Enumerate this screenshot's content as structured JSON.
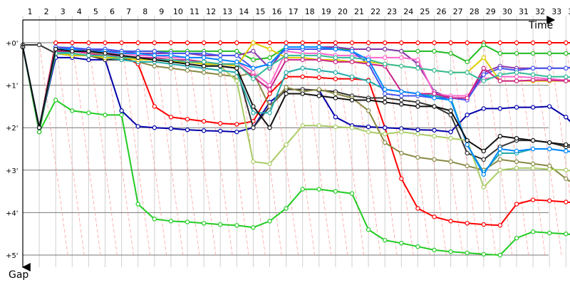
{
  "chart_data": {
    "type": "line",
    "title": "",
    "xlabel": "Time",
    "ylabel": "Gap",
    "x": [
      1,
      2,
      3,
      4,
      5,
      6,
      7,
      8,
      9,
      10,
      11,
      12,
      13,
      14,
      15,
      16,
      17,
      18,
      19,
      20,
      21,
      22,
      23,
      24,
      25,
      26,
      27,
      28,
      29,
      30,
      31,
      32,
      33,
      34,
      35
    ],
    "x_tick_labels": [
      "1",
      "2",
      "3",
      "4",
      "5",
      "6",
      "7",
      "8",
      "9",
      "10",
      "11",
      "12",
      "13",
      "14",
      "15",
      "16",
      "17",
      "18",
      "19",
      "20",
      "21",
      "22",
      "23",
      "24",
      "25",
      "26",
      "27",
      "28",
      "29",
      "30",
      "31",
      "32",
      "33",
      "34",
      "35"
    ],
    "y_tick_labels": [
      "+0'",
      "+1'",
      "+2'",
      "+3'",
      "+4'",
      "+5'"
    ],
    "y_ticks": [
      0,
      1,
      2,
      3,
      4,
      5
    ],
    "ylim": [
      0,
      5
    ],
    "y_inverted": true,
    "xlim": [
      1,
      36
    ],
    "grid": true,
    "legend": "none",
    "series": [
      {
        "color": "#ff0000",
        "values": [
          0.1,
          2.0,
          0.25,
          0.3,
          0.3,
          0.3,
          0.3,
          0.5,
          1.5,
          1.75,
          1.8,
          1.85,
          1.9,
          1.92,
          1.85,
          1.2,
          0.8,
          0.8,
          0.82,
          0.85,
          0.85,
          0.88,
          2.0,
          3.2,
          3.9,
          4.1,
          4.2,
          4.25,
          4.28,
          4.3,
          3.8,
          3.7,
          3.72,
          3.75,
          3.78
        ]
      },
      {
        "color": "#ff0000",
        "values": [
          0.1,
          2.0,
          0.0,
          0.0,
          0.0,
          0.0,
          0.0,
          0.0,
          0.0,
          0.0,
          0.0,
          0.0,
          0.0,
          0.0,
          0.0,
          0.0,
          0.0,
          0.0,
          0.0,
          0.0,
          0.0,
          0.0,
          0.0,
          0.0,
          0.0,
          0.0,
          0.0,
          0.0,
          0.0,
          0.0,
          0.0,
          0.0,
          0.0,
          0.0,
          0.0
        ]
      },
      {
        "color": "#22cc22",
        "values": [
          0.1,
          2.1,
          1.35,
          1.6,
          1.65,
          1.7,
          1.7,
          3.8,
          4.15,
          4.2,
          4.22,
          4.25,
          4.28,
          4.3,
          4.35,
          4.2,
          3.9,
          3.45,
          3.45,
          3.5,
          3.55,
          4.4,
          4.65,
          4.72,
          4.8,
          4.88,
          4.92,
          4.95,
          4.98,
          5.0,
          4.6,
          4.45,
          4.48,
          4.5,
          4.55
        ]
      },
      {
        "color": "#22bb22",
        "values": [
          0.1,
          2.1,
          0.2,
          0.2,
          0.2,
          0.2,
          0.2,
          0.2,
          0.2,
          0.2,
          0.2,
          0.2,
          0.2,
          0.2,
          0.4,
          0.35,
          0.1,
          0.1,
          0.1,
          0.15,
          0.15,
          0.15,
          0.15,
          0.2,
          0.2,
          0.2,
          0.25,
          0.45,
          0.05,
          0.25,
          0.25,
          0.25,
          0.25,
          0.25,
          0.28
        ]
      },
      {
        "color": "#0000aa",
        "values": [
          0.1,
          2.0,
          0.35,
          0.35,
          0.4,
          0.4,
          1.6,
          1.97,
          2.0,
          2.02,
          2.05,
          2.07,
          2.08,
          2.1,
          2.0,
          1.4,
          1.1,
          1.1,
          1.12,
          1.75,
          1.95,
          1.98,
          2.0,
          2.02,
          2.05,
          2.06,
          2.1,
          1.7,
          1.55,
          1.55,
          1.52,
          1.52,
          1.5,
          1.75,
          2.15
        ]
      },
      {
        "color": "#333333",
        "values": [
          0.05,
          0.05,
          0.25,
          0.3,
          0.3,
          0.4,
          0.4,
          0.35,
          0.4,
          0.45,
          0.45,
          0.5,
          0.55,
          0.6,
          2.0,
          1.5,
          1.1,
          1.1,
          1.12,
          1.15,
          1.25,
          1.3,
          1.3,
          1.35,
          1.4,
          1.5,
          1.7,
          2.6,
          2.75,
          2.45,
          2.3,
          2.3,
          2.35,
          2.45,
          2.48
        ]
      },
      {
        "color": "#888844",
        "values": [
          0.1,
          2.0,
          0.2,
          0.25,
          0.3,
          0.35,
          0.4,
          0.45,
          0.55,
          0.6,
          0.65,
          0.7,
          0.75,
          0.8,
          0.7,
          1.5,
          1.05,
          1.15,
          1.1,
          1.2,
          1.3,
          1.6,
          2.35,
          2.6,
          2.7,
          2.75,
          2.8,
          2.9,
          3.0,
          2.75,
          2.8,
          2.85,
          2.9,
          3.2,
          3.45
        ]
      },
      {
        "color": "#aacc66",
        "values": [
          0.1,
          2.0,
          0.15,
          0.2,
          0.25,
          0.25,
          0.3,
          0.35,
          0.4,
          0.45,
          0.45,
          0.5,
          0.55,
          0.9,
          2.8,
          2.85,
          2.4,
          1.95,
          1.95,
          1.98,
          2.0,
          2.1,
          2.15,
          2.1,
          2.15,
          2.2,
          2.25,
          2.3,
          3.4,
          3.0,
          2.95,
          2.95,
          2.98,
          3.0,
          3.05
        ]
      },
      {
        "color": "#22aaaa",
        "values": [
          0.1,
          2.0,
          0.2,
          0.25,
          0.3,
          0.35,
          0.4,
          0.45,
          0.45,
          0.5,
          0.55,
          0.6,
          0.65,
          0.7,
          1.65,
          1.65,
          0.7,
          0.6,
          0.65,
          0.7,
          0.8,
          0.9,
          1.1,
          1.15,
          1.2,
          1.25,
          1.3,
          2.4,
          3.05,
          2.6,
          2.6,
          2.5,
          2.5,
          2.55,
          2.6
        ]
      },
      {
        "color": "#8833aa",
        "values": [
          0.1,
          2.0,
          0.1,
          0.15,
          0.15,
          0.2,
          0.2,
          0.25,
          0.25,
          0.25,
          0.25,
          0.3,
          0.3,
          0.3,
          0.2,
          0.6,
          0.1,
          0.1,
          0.1,
          0.1,
          0.15,
          0.15,
          0.15,
          0.2,
          0.5,
          1.15,
          1.3,
          1.3,
          0.7,
          0.55,
          0.6,
          0.6,
          0.6,
          0.6,
          0.55
        ]
      },
      {
        "color": "#ff66cc",
        "values": [
          0.1,
          2.0,
          0.15,
          0.2,
          0.2,
          0.25,
          0.25,
          0.3,
          0.3,
          0.35,
          0.35,
          0.35,
          0.4,
          0.45,
          0.7,
          1.0,
          0.2,
          0.25,
          0.25,
          0.3,
          0.3,
          0.35,
          0.35,
          0.35,
          0.4,
          1.2,
          1.25,
          1.25,
          0.85,
          0.8,
          0.8,
          0.82,
          0.85,
          0.88,
          0.9
        ]
      },
      {
        "color": "#4455ee",
        "values": [
          0.1,
          2.0,
          0.1,
          0.12,
          0.15,
          0.15,
          0.2,
          0.2,
          0.2,
          0.25,
          0.25,
          0.25,
          0.3,
          0.3,
          0.6,
          0.5,
          0.15,
          0.15,
          0.15,
          0.15,
          0.2,
          0.5,
          1.2,
          1.25,
          1.25,
          1.3,
          1.3,
          1.35,
          0.75,
          0.6,
          0.65,
          0.6,
          0.6,
          0.6,
          0.55
        ]
      },
      {
        "color": "#ddcc00",
        "values": [
          0.1,
          2.0,
          0.25,
          0.3,
          0.3,
          0.35,
          0.35,
          0.4,
          0.4,
          0.45,
          0.45,
          0.5,
          0.5,
          0.55,
          0.0,
          0.15,
          0.35,
          0.35,
          0.4,
          0.4,
          0.45,
          0.45,
          0.5,
          0.55,
          0.6,
          0.65,
          0.7,
          0.7,
          0.35,
          0.9,
          0.9,
          0.9,
          0.9,
          0.9,
          0.95
        ]
      },
      {
        "color": "#cc2288",
        "values": [
          0.1,
          2.0,
          0.2,
          0.2,
          0.25,
          0.3,
          0.3,
          0.35,
          0.35,
          0.4,
          0.4,
          0.45,
          0.5,
          0.5,
          0.8,
          1.1,
          0.4,
          0.4,
          0.4,
          0.45,
          0.45,
          0.5,
          0.55,
          1.15,
          1.2,
          1.2,
          1.3,
          1.3,
          0.6,
          0.9,
          0.9,
          0.88,
          0.88,
          0.9,
          0.9
        ]
      },
      {
        "color": "#33bb99",
        "values": [
          0.1,
          2.0,
          0.25,
          0.25,
          0.3,
          0.3,
          0.35,
          0.35,
          0.4,
          0.4,
          0.45,
          0.45,
          0.5,
          0.5,
          0.85,
          0.55,
          0.3,
          0.3,
          0.3,
          0.35,
          0.35,
          0.4,
          0.5,
          0.55,
          0.6,
          0.65,
          0.7,
          0.7,
          0.9,
          0.75,
          0.7,
          0.75,
          0.8,
          0.8,
          0.85
        ]
      },
      {
        "color": "#0088ff",
        "values": [
          0.1,
          2.0,
          0.15,
          0.15,
          0.2,
          0.2,
          0.25,
          0.25,
          0.3,
          0.3,
          0.35,
          0.35,
          0.4,
          0.45,
          0.6,
          0.5,
          0.1,
          0.1,
          0.1,
          0.15,
          0.2,
          0.4,
          1.1,
          1.15,
          1.2,
          1.3,
          1.35,
          2.4,
          3.1,
          2.5,
          2.55,
          2.5,
          2.5,
          2.55,
          2.6
        ]
      },
      {
        "color": "#111111",
        "values": [
          0.1,
          2.0,
          0.15,
          0.2,
          0.2,
          0.25,
          0.3,
          0.35,
          0.4,
          0.45,
          0.5,
          0.55,
          0.55,
          0.6,
          1.5,
          2.0,
          1.2,
          1.2,
          1.25,
          1.3,
          1.35,
          1.35,
          1.4,
          1.45,
          1.5,
          1.5,
          1.6,
          2.3,
          2.55,
          2.2,
          2.25,
          2.3,
          2.35,
          2.4,
          2.45
        ]
      }
    ]
  }
}
